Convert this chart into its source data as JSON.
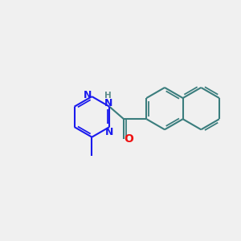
{
  "background_color": "#f0f0f0",
  "naph_color": "#3a7d7d",
  "pyr_color": "#1a1aee",
  "O_color": "#ee1111",
  "N_color": "#1a1aee",
  "NH_color": "#5a8a8a",
  "lw": 1.5,
  "font_size_N": 9,
  "font_size_NH": 8,
  "font_size_H": 7.5,
  "dpi": 100,
  "figsize": [
    3.0,
    3.0
  ],
  "xlim": [
    0,
    10
  ],
  "ylim": [
    0,
    10
  ]
}
